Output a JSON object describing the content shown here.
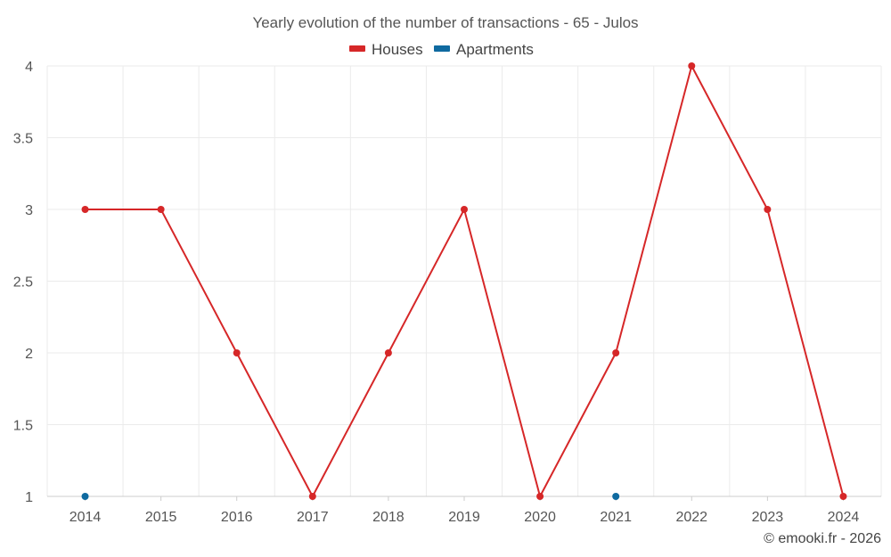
{
  "chart_data": {
    "type": "line",
    "title": "Yearly evolution of the number of transactions - 65 - Julos",
    "xlabel": "",
    "ylabel": "",
    "categories": [
      "2014",
      "2015",
      "2016",
      "2017",
      "2018",
      "2019",
      "2020",
      "2021",
      "2022",
      "2023",
      "2024"
    ],
    "ylim": [
      1,
      4
    ],
    "yticks": [
      1,
      1.5,
      2,
      2.5,
      3,
      3.5,
      4
    ],
    "ytick_labels": [
      "1",
      "1.5",
      "2",
      "2.5",
      "3",
      "3.5",
      "4"
    ],
    "grid": true,
    "legend_position": "top-center",
    "series": [
      {
        "name": "Houses",
        "color": "#d62728",
        "mode": "line",
        "values": [
          3,
          3,
          2,
          1,
          2,
          3,
          1,
          2,
          4,
          3,
          1
        ]
      },
      {
        "name": "Apartments",
        "color": "#0f6aa0",
        "mode": "markers",
        "values": [
          1,
          null,
          null,
          null,
          null,
          null,
          null,
          1,
          null,
          null,
          null
        ]
      }
    ]
  },
  "credit": "© emooki.fr - 2026"
}
